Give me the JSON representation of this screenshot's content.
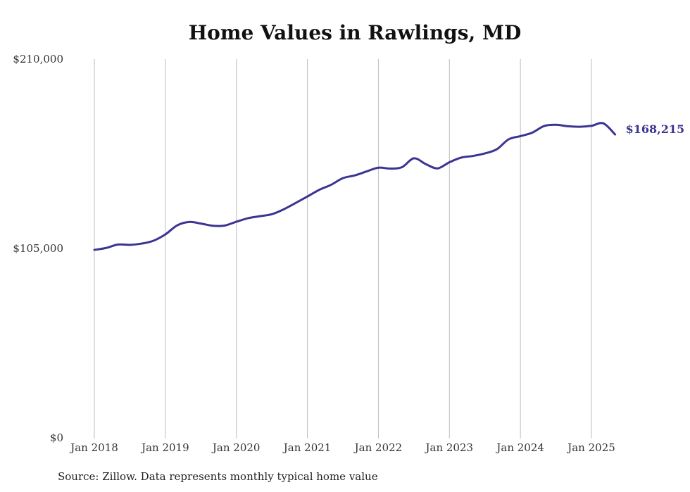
{
  "colors": {
    "line": "#3b3491",
    "grid": "#bdbdbd",
    "text": "#333333"
  },
  "chart_data": {
    "type": "line",
    "title": "Home Values in Rawlings, MD",
    "xlabel": "",
    "ylabel": "",
    "x_ticks": [
      "Jan 2018",
      "Jan 2019",
      "Jan 2020",
      "Jan 2021",
      "Jan 2022",
      "Jan 2023",
      "Jan 2024",
      "Jan 2025"
    ],
    "x_tick_years": [
      2018,
      2019,
      2020,
      2021,
      2022,
      2023,
      2024,
      2025
    ],
    "y_ticks": [
      0,
      105000,
      210000
    ],
    "y_tick_labels": [
      "$0",
      "$105,000",
      "$210,000"
    ],
    "ylim": [
      0,
      210000
    ],
    "grid": "vertical",
    "legend": "none",
    "series": [
      {
        "x": [
          "2018-01",
          "2018-03",
          "2018-05",
          "2018-07",
          "2018-09",
          "2018-11",
          "2019-01",
          "2019-03",
          "2019-05",
          "2019-07",
          "2019-09",
          "2019-11",
          "2020-01",
          "2020-03",
          "2020-05",
          "2020-07",
          "2020-09",
          "2020-11",
          "2021-01",
          "2021-03",
          "2021-05",
          "2021-07",
          "2021-09",
          "2021-11",
          "2022-01",
          "2022-03",
          "2022-05",
          "2022-07",
          "2022-09",
          "2022-11",
          "2023-01",
          "2023-03",
          "2023-05",
          "2023-07",
          "2023-09",
          "2023-11",
          "2024-01",
          "2024-03",
          "2024-05",
          "2024-07",
          "2024-09",
          "2024-11",
          "2025-01",
          "2025-03",
          "2025-05"
        ],
        "values": [
          104200,
          105300,
          107200,
          107000,
          107700,
          109300,
          112800,
          117800,
          119700,
          118800,
          117600,
          117700,
          119800,
          121800,
          122900,
          124000,
          126700,
          130200,
          133800,
          137500,
          140300,
          144000,
          145500,
          147700,
          149800,
          149300,
          150100,
          155000,
          151800,
          149400,
          152800,
          155400,
          156300,
          157700,
          160000,
          165500,
          167300,
          169200,
          172900,
          173600,
          172800,
          172500,
          173000,
          174400,
          168215
        ],
        "end_label": "$168,215"
      }
    ]
  },
  "source": "Source: Zillow. Data represents monthly typical home value"
}
